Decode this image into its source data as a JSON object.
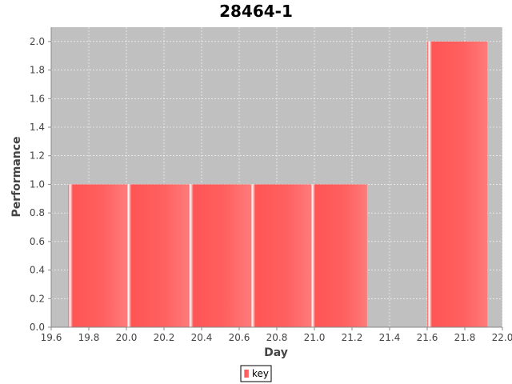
{
  "chart_data": {
    "type": "bar",
    "title": "28464-1",
    "xlabel": "Day",
    "ylabel": "Performance",
    "xlim": [
      19.6,
      22.0
    ],
    "ylim": [
      0.0,
      2.1
    ],
    "x_ticks": [
      "19.6",
      "19.8",
      "20.0",
      "20.2",
      "20.4",
      "20.6",
      "20.8",
      "21.0",
      "21.2",
      "21.4",
      "21.6",
      "21.8",
      "22.0"
    ],
    "y_ticks": [
      "0.0",
      "0.2",
      "0.4",
      "0.6",
      "0.8",
      "1.0",
      "1.2",
      "1.4",
      "1.6",
      "1.8",
      "2.0"
    ],
    "grid": true,
    "legend_position": "bottom-center",
    "series": [
      {
        "name": "key",
        "color": "#ff5555",
        "bars": [
          {
            "x_start": 19.69,
            "x_end": 20.0,
            "value": 1.0
          },
          {
            "x_start": 20.0,
            "x_end": 20.33,
            "value": 1.0
          },
          {
            "x_start": 20.33,
            "x_end": 20.66,
            "value": 1.0
          },
          {
            "x_start": 20.66,
            "x_end": 20.98,
            "value": 1.0
          },
          {
            "x_start": 20.98,
            "x_end": 21.28,
            "value": 1.0
          },
          {
            "x_start": 21.6,
            "x_end": 21.92,
            "value": 2.0
          }
        ]
      }
    ],
    "plot_background": "#c0c0c0",
    "grid_color": "#ffffff"
  }
}
